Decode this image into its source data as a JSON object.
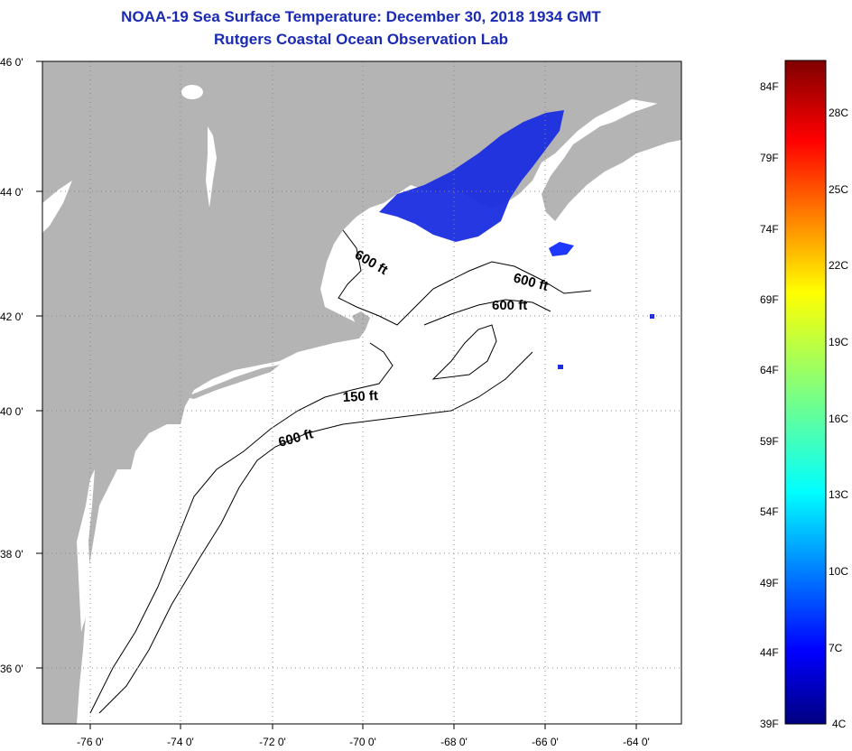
{
  "title": "NOAA-19 Sea Surface Temperature:  December 30, 2018 1934 GMT",
  "subtitle": "Rutgers Coastal Ocean Observation Lab",
  "latitude_labels": [
    "46 0'",
    "44 0'",
    "42 0'",
    "40 0'",
    "38 0'",
    "36 0'"
  ],
  "longitude_labels": [
    "-76 0'",
    "-74 0'",
    "-72 0'",
    "-70 0'",
    "-68 0'",
    "-66 0'",
    "-64 0'"
  ],
  "contour_labels": [
    "600 ft",
    "600 ft",
    "600 ft",
    "150 ft",
    "600 ft"
  ],
  "colorbar": {
    "fahrenheit": [
      "84F",
      "79F",
      "74F",
      "69F",
      "64F",
      "59F",
      "54F",
      "49F",
      "44F",
      "39F"
    ],
    "celsius": [
      "28C",
      "25C",
      "22C",
      "19C",
      "16C",
      "13C",
      "10C",
      "7C",
      "4C"
    ],
    "range_f": [
      39,
      86
    ],
    "range_c": [
      4,
      30
    ]
  },
  "colors": {
    "title": "#1a2ab3",
    "land": "#b4b4b4",
    "ocean": "#ffffff",
    "sst_cold": "#1a2de0"
  }
}
